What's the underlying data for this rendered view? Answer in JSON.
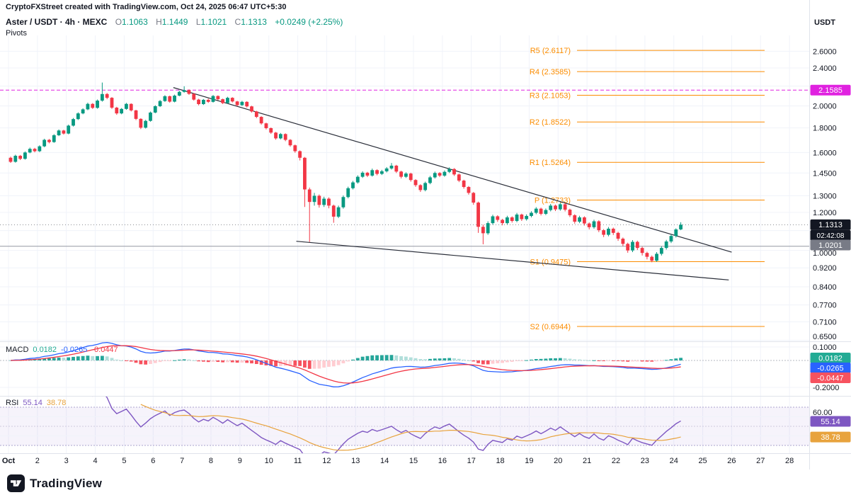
{
  "attribution": "CryptoFXStreet created with TradingView.com, Oct 24, 2025 06:47 UTC+5:30",
  "legend": {
    "title": "Aster / USDT · 4h · MEXC",
    "o_label": "O",
    "o": "1.1063",
    "h_label": "H",
    "h": "1.1449",
    "l_label": "L",
    "l": "1.1021",
    "c_label": "C",
    "c": "1.1313",
    "change": "+0.0249 (+2.25%)",
    "indicator": "Pivots"
  },
  "macd_legend": {
    "name": "MACD",
    "hist": "0.0182",
    "macd": "-0.0265",
    "signal": "-0.0447"
  },
  "rsi_legend": {
    "name": "RSI",
    "value": "55.14",
    "ma": "38.78"
  },
  "price_axis": {
    "currency": "USDT",
    "ticks": [
      "2.6000",
      "2.4000",
      "2.0000",
      "1.8000",
      "1.6000",
      "1.4500",
      "1.3000",
      "1.2000",
      "1.0000",
      "0.9200",
      "0.8400",
      "0.7700",
      "0.7100",
      "0.6500"
    ],
    "last_price": "1.1313",
    "countdown": "02:42:08",
    "price_line": "1.0201",
    "level": "2.1585",
    "macd_ticks": [
      {
        "label": "0.1000",
        "value": 0.1
      },
      {
        "label": "-0.2000",
        "value": -0.2
      }
    ],
    "macd_badges": [
      {
        "label": "0.0182",
        "color": "#22AB94"
      },
      {
        "label": "-0.0265",
        "color": "#2962FF"
      },
      {
        "label": "-0.0447",
        "color": "#F7525F"
      }
    ],
    "rsi_ticks": [
      {
        "label": "60.00",
        "value": 60
      }
    ],
    "rsi_badges": [
      {
        "label": "55.14",
        "value": 55.14,
        "color": "#7E57C2"
      },
      {
        "label": "38.78",
        "value": 38.78,
        "color": "#E8A33D"
      }
    ]
  },
  "time_axis": {
    "labels": [
      "Oct",
      "2",
      "3",
      "4",
      "5",
      "6",
      "7",
      "8",
      "9",
      "10",
      "11",
      "12",
      "13",
      "14",
      "15",
      "16",
      "17",
      "18",
      "19",
      "20",
      "21",
      "22",
      "23",
      "24",
      "25",
      "26",
      "27",
      "28"
    ]
  },
  "logo": {
    "text": "TradingView"
  },
  "colors": {
    "up": "#089981",
    "down": "#F23645",
    "pivot": "#FB8C00",
    "level_magenta": "#E022E0",
    "price_line_gray": "#9598A1",
    "macd_line": "#2962FF",
    "signal_line": "#F23645",
    "hist_up": "#26A69A",
    "hist_up_weak": "#B2DFDB",
    "hist_down": "#F7525F",
    "hist_down_weak": "#FFCDD2",
    "rsi": "#7E57C2",
    "rsi_ma": "#E8A33D",
    "trendline": "#2A2E39"
  },
  "chart_data": [
    {
      "type": "candlestick",
      "title": "ASTER/USDT 4h (MEXC) with Pivot Points",
      "scale": "log",
      "x_range": [
        "Oct 1",
        "Oct 28"
      ],
      "price_range": [
        0.615,
        2.78
      ],
      "candles_per_day": 6,
      "last": {
        "open": 1.1063,
        "high": 1.1449,
        "low": 1.1021,
        "close": 1.1313,
        "change": 0.0249,
        "change_pct": 2.25
      },
      "pivots": [
        {
          "name": "R5",
          "value": 2.6117
        },
        {
          "name": "R4",
          "value": 2.3585
        },
        {
          "name": "R3",
          "value": 2.1053
        },
        {
          "name": "R2",
          "value": 1.8522
        },
        {
          "name": "R1",
          "value": 1.5264
        },
        {
          "name": "P",
          "value": 1.2733
        },
        {
          "name": "S1",
          "value": 0.9475
        },
        {
          "name": "S2",
          "value": 0.6944
        }
      ],
      "levels": [
        {
          "value": 2.1585,
          "color": "#E022E0",
          "style": "dashed"
        },
        {
          "value": 1.0201,
          "color": "#9598A1",
          "style": "solid"
        }
      ],
      "trendlines": [
        {
          "from_day": 6.7,
          "from_price": 2.185,
          "to_day": 26.0,
          "to_price": 0.992
        },
        {
          "from_day": 10.95,
          "from_price": 1.045,
          "to_day": 25.9,
          "to_price": 0.868
        }
      ],
      "ohlc": [
        [
          1.56,
          1.568,
          1.522,
          1.53
        ],
        [
          1.53,
          1.583,
          1.524,
          1.575
        ],
        [
          1.575,
          1.581,
          1.543,
          1.552
        ],
        [
          1.552,
          1.608,
          1.546,
          1.6
        ],
        [
          1.6,
          1.638,
          1.594,
          1.628
        ],
        [
          1.628,
          1.636,
          1.601,
          1.61
        ],
        [
          1.61,
          1.656,
          1.603,
          1.648
        ],
        [
          1.648,
          1.709,
          1.641,
          1.7
        ],
        [
          1.7,
          1.707,
          1.672,
          1.682
        ],
        [
          1.682,
          1.747,
          1.676,
          1.738
        ],
        [
          1.738,
          1.787,
          1.731,
          1.778
        ],
        [
          1.778,
          1.784,
          1.744,
          1.752
        ],
        [
          1.752,
          1.829,
          1.746,
          1.82
        ],
        [
          1.82,
          1.888,
          1.812,
          1.878
        ],
        [
          1.878,
          1.94,
          1.87,
          1.93
        ],
        [
          1.93,
          1.978,
          1.922,
          1.968
        ],
        [
          1.968,
          2.032,
          1.96,
          2.02
        ],
        [
          2.02,
          2.028,
          1.972,
          1.982
        ],
        [
          1.982,
          2.063,
          1.974,
          2.052
        ],
        [
          2.052,
          2.238,
          2.042,
          2.118
        ],
        [
          2.118,
          2.128,
          2.066,
          2.08
        ],
        [
          2.08,
          2.087,
          1.972,
          1.984
        ],
        [
          1.984,
          1.992,
          1.917,
          1.93
        ],
        [
          1.93,
          1.98,
          1.922,
          1.972
        ],
        [
          1.972,
          2.03,
          1.964,
          2.02
        ],
        [
          2.02,
          2.026,
          1.948,
          1.958
        ],
        [
          1.958,
          1.964,
          1.869,
          1.88
        ],
        [
          1.88,
          1.886,
          1.79,
          1.802
        ],
        [
          1.802,
          1.871,
          1.795,
          1.862
        ],
        [
          1.862,
          1.947,
          1.855,
          1.938
        ],
        [
          1.938,
          2.007,
          1.931,
          1.998
        ],
        [
          1.998,
          2.058,
          1.99,
          2.048
        ],
        [
          2.048,
          2.106,
          2.04,
          2.096
        ],
        [
          2.096,
          2.102,
          2.032,
          2.042
        ],
        [
          2.042,
          2.112,
          2.035,
          2.102
        ],
        [
          2.102,
          2.152,
          2.095,
          2.14
        ],
        [
          2.14,
          2.198,
          2.132,
          2.158
        ],
        [
          2.158,
          2.166,
          2.11,
          2.12
        ],
        [
          2.12,
          2.127,
          2.052,
          2.062
        ],
        [
          2.062,
          2.07,
          2.006,
          2.018
        ],
        [
          2.018,
          2.068,
          2.01,
          2.06
        ],
        [
          2.06,
          2.072,
          2.03,
          2.04
        ],
        [
          2.04,
          2.108,
          2.033,
          2.098
        ],
        [
          2.098,
          2.104,
          2.056,
          2.066
        ],
        [
          2.066,
          2.072,
          2.018,
          2.028
        ],
        [
          2.028,
          2.09,
          2.021,
          2.08
        ],
        [
          2.08,
          2.086,
          2.034,
          2.044
        ],
        [
          2.044,
          2.05,
          1.998,
          2.008
        ],
        [
          2.008,
          2.05,
          2.0,
          2.04
        ],
        [
          2.04,
          2.046,
          1.986,
          1.996
        ],
        [
          1.996,
          2.002,
          1.938,
          1.948
        ],
        [
          1.948,
          1.954,
          1.887,
          1.898
        ],
        [
          1.898,
          1.904,
          1.829,
          1.84
        ],
        [
          1.84,
          1.846,
          1.787,
          1.798
        ],
        [
          1.798,
          1.804,
          1.749,
          1.76
        ],
        [
          1.76,
          1.766,
          1.701,
          1.712
        ],
        [
          1.712,
          1.757,
          1.704,
          1.748
        ],
        [
          1.748,
          1.754,
          1.689,
          1.7
        ],
        [
          1.7,
          1.706,
          1.645,
          1.656
        ],
        [
          1.656,
          1.662,
          1.598,
          1.61
        ],
        [
          1.61,
          1.616,
          1.54,
          1.56
        ],
        [
          1.56,
          1.566,
          1.232,
          1.34
        ],
        [
          1.34,
          1.352,
          1.042,
          1.262
        ],
        [
          1.262,
          1.318,
          1.24,
          1.3
        ],
        [
          1.3,
          1.308,
          1.228,
          1.244
        ],
        [
          1.244,
          1.294,
          1.232,
          1.282
        ],
        [
          1.282,
          1.29,
          1.224,
          1.24
        ],
        [
          1.24,
          1.246,
          1.142,
          1.176
        ],
        [
          1.176,
          1.24,
          1.168,
          1.23
        ],
        [
          1.23,
          1.302,
          1.222,
          1.292
        ],
        [
          1.292,
          1.358,
          1.284,
          1.348
        ],
        [
          1.348,
          1.396,
          1.34,
          1.386
        ],
        [
          1.386,
          1.434,
          1.378,
          1.424
        ],
        [
          1.424,
          1.462,
          1.416,
          1.452
        ],
        [
          1.452,
          1.458,
          1.422,
          1.432
        ],
        [
          1.432,
          1.481,
          1.425,
          1.47
        ],
        [
          1.47,
          1.476,
          1.434,
          1.444
        ],
        [
          1.444,
          1.472,
          1.436,
          1.462
        ],
        [
          1.462,
          1.492,
          1.454,
          1.482
        ],
        [
          1.482,
          1.521,
          1.474,
          1.502
        ],
        [
          1.502,
          1.508,
          1.45,
          1.46
        ],
        [
          1.46,
          1.466,
          1.413,
          1.424
        ],
        [
          1.424,
          1.455,
          1.416,
          1.446
        ],
        [
          1.446,
          1.452,
          1.391,
          1.402
        ],
        [
          1.402,
          1.408,
          1.357,
          1.368
        ],
        [
          1.368,
          1.374,
          1.324,
          1.336
        ],
        [
          1.336,
          1.391,
          1.328,
          1.382
        ],
        [
          1.382,
          1.43,
          1.374,
          1.42
        ],
        [
          1.42,
          1.46,
          1.412,
          1.45
        ],
        [
          1.45,
          1.456,
          1.422,
          1.432
        ],
        [
          1.432,
          1.468,
          1.424,
          1.458
        ],
        [
          1.458,
          1.49,
          1.45,
          1.478
        ],
        [
          1.478,
          1.484,
          1.43,
          1.44
        ],
        [
          1.44,
          1.446,
          1.388,
          1.398
        ],
        [
          1.398,
          1.404,
          1.345,
          1.356
        ],
        [
          1.356,
          1.362,
          1.307,
          1.318
        ],
        [
          1.318,
          1.324,
          1.245,
          1.258
        ],
        [
          1.258,
          1.264,
          1.088,
          1.12
        ],
        [
          1.12,
          1.132,
          1.03,
          1.086
        ],
        [
          1.086,
          1.15,
          1.078,
          1.14
        ],
        [
          1.14,
          1.187,
          1.132,
          1.178
        ],
        [
          1.178,
          1.184,
          1.147,
          1.158
        ],
        [
          1.158,
          1.164,
          1.128,
          1.14
        ],
        [
          1.14,
          1.181,
          1.133,
          1.172
        ],
        [
          1.172,
          1.178,
          1.143,
          1.152
        ],
        [
          1.152,
          1.197,
          1.145,
          1.188
        ],
        [
          1.188,
          1.193,
          1.152,
          1.162
        ],
        [
          1.162,
          1.189,
          1.154,
          1.18
        ],
        [
          1.18,
          1.207,
          1.172,
          1.198
        ],
        [
          1.198,
          1.231,
          1.19,
          1.222
        ],
        [
          1.222,
          1.228,
          1.183,
          1.192
        ],
        [
          1.192,
          1.223,
          1.185,
          1.214
        ],
        [
          1.214,
          1.25,
          1.206,
          1.24
        ],
        [
          1.24,
          1.246,
          1.208,
          1.218
        ],
        [
          1.218,
          1.258,
          1.21,
          1.248
        ],
        [
          1.248,
          1.254,
          1.206,
          1.216
        ],
        [
          1.216,
          1.222,
          1.174,
          1.184
        ],
        [
          1.184,
          1.19,
          1.137,
          1.148
        ],
        [
          1.148,
          1.181,
          1.14,
          1.172
        ],
        [
          1.172,
          1.178,
          1.127,
          1.138
        ],
        [
          1.138,
          1.144,
          1.106,
          1.118
        ],
        [
          1.118,
          1.159,
          1.11,
          1.15
        ],
        [
          1.15,
          1.156,
          1.092,
          1.102
        ],
        [
          1.102,
          1.108,
          1.066,
          1.078
        ],
        [
          1.078,
          1.119,
          1.07,
          1.11
        ],
        [
          1.11,
          1.116,
          1.077,
          1.088
        ],
        [
          1.088,
          1.094,
          1.047,
          1.058
        ],
        [
          1.058,
          1.064,
          1.021,
          1.032
        ],
        [
          1.032,
          1.038,
          0.989,
          1.0
        ],
        [
          1.0,
          1.051,
          0.992,
          1.042
        ],
        [
          1.042,
          1.048,
          1.002,
          1.012
        ],
        [
          1.012,
          1.018,
          0.976,
          0.988
        ],
        [
          0.988,
          0.994,
          0.958,
          0.97
        ],
        [
          0.97,
          0.976,
          0.945,
          0.952
        ],
        [
          0.952,
          0.992,
          0.947,
          0.984
        ],
        [
          0.984,
          1.02,
          0.976,
          1.012
        ],
        [
          1.012,
          1.052,
          1.004,
          1.044
        ],
        [
          1.044,
          1.08,
          1.036,
          1.072
        ],
        [
          1.072,
          1.112,
          1.064,
          1.106
        ],
        [
          1.1063,
          1.1449,
          1.1021,
          1.1313
        ]
      ]
    },
    {
      "type": "line",
      "title": "MACD 12,26,9",
      "display": {
        "histogram": 0.0182,
        "macd": -0.0265,
        "signal": -0.0447
      },
      "axis_ticks": [
        0.1,
        -0.2
      ],
      "computed_from": "ohlc closes of chart_data[0]"
    },
    {
      "type": "line",
      "title": "RSI 14 with RSI-based MA 14",
      "display": {
        "rsi": 55.14,
        "ma": 38.78
      },
      "band": [
        30,
        70
      ],
      "axis_ticks": [
        60
      ],
      "computed_from": "ohlc closes of chart_data[0]"
    }
  ]
}
